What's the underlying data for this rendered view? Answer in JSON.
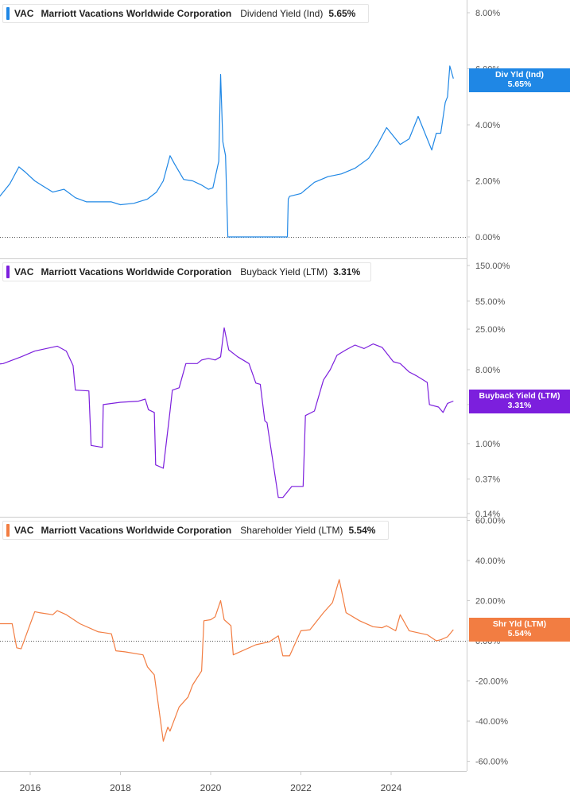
{
  "colors": {
    "dividend": "#1f87e5",
    "buyback": "#7c1fdd",
    "shareholder": "#f27d42",
    "axis": "#cccccc",
    "zero_line": "#555555"
  },
  "x_axis": {
    "ticks": [
      "2016",
      "2018",
      "2020",
      "2022",
      "2024"
    ]
  },
  "panels": [
    {
      "ticker": "VAC",
      "company": "Marriott Vacations Worldwide Corporation",
      "metric": "Dividend Yield (Ind)",
      "value": "5.65%",
      "tag_line1": "Div Yld (Ind)",
      "tag_line2": "5.65%",
      "y_ticks": [
        "8.00%",
        "6.00%",
        "4.00%",
        "2.00%",
        "0.00%"
      ]
    },
    {
      "ticker": "VAC",
      "company": "Marriott Vacations Worldwide Corporation",
      "metric": "Buyback Yield (LTM)",
      "value": "3.31%",
      "tag_line1": "Buyback Yield (LTM)",
      "tag_line2": "3.31%",
      "y_ticks": [
        "150.00%",
        "55.00%",
        "25.00%",
        "8.00%",
        "3.00%",
        "1.00%",
        "0.37%",
        "0.14%"
      ]
    },
    {
      "ticker": "VAC",
      "company": "Marriott Vacations Worldwide Corporation",
      "metric": "Shareholder Yield (LTM)",
      "value": "5.54%",
      "tag_line1": "Shr Yld (LTM)",
      "tag_line2": "5.54%",
      "y_ticks": [
        "60.00%",
        "40.00%",
        "20.00%",
        "0.00%",
        "-20.00%",
        "-40.00%",
        "-60.00%"
      ]
    }
  ],
  "chart_data": [
    {
      "type": "line",
      "series": [
        {
          "name": "Dividend Yield (Ind)",
          "x": [
            2015.0,
            2015.2,
            2015.4,
            2015.55,
            2015.75,
            2015.9,
            2016.1,
            2016.3,
            2016.5,
            2016.75,
            2017.0,
            2017.25,
            2017.5,
            2017.8,
            2018.0,
            2018.3,
            2018.6,
            2018.8,
            2018.95,
            2019.1,
            2019.2,
            2019.4,
            2019.6,
            2019.8,
            2019.95,
            2020.05,
            2020.18,
            2020.22,
            2020.27,
            2020.33,
            2020.38,
            2020.5,
            2021.0,
            2021.5,
            2021.7,
            2021.72,
            2021.75,
            2022.0,
            2022.3,
            2022.6,
            2022.9,
            2023.2,
            2023.5,
            2023.7,
            2023.9,
            2024.0,
            2024.2,
            2024.4,
            2024.6,
            2024.8,
            2024.9,
            2025.0,
            2025.1,
            2025.2,
            2025.25,
            2025.3,
            2025.38
          ],
          "values": [
            1.15,
            1.2,
            1.6,
            1.9,
            2.5,
            2.3,
            2.0,
            1.8,
            1.6,
            1.7,
            1.4,
            1.25,
            1.25,
            1.25,
            1.15,
            1.2,
            1.35,
            1.6,
            2.0,
            2.9,
            2.6,
            2.05,
            2.0,
            1.85,
            1.7,
            1.75,
            2.7,
            5.8,
            3.4,
            2.9,
            0.0,
            0.0,
            0.0,
            0.0,
            0.0,
            1.35,
            1.45,
            1.55,
            1.95,
            2.15,
            2.25,
            2.45,
            2.8,
            3.3,
            3.9,
            3.7,
            3.3,
            3.5,
            4.3,
            3.5,
            3.1,
            3.7,
            3.7,
            4.8,
            5.0,
            6.1,
            5.65
          ]
        }
      ],
      "ylim": [
        0,
        8.5
      ],
      "grid": false
    },
    {
      "type": "line",
      "y_scale": "log",
      "series": [
        {
          "name": "Buyback Yield (LTM)",
          "x": [
            2015.0,
            2015.4,
            2015.8,
            2016.1,
            2016.6,
            2016.8,
            2016.95,
            2017.0,
            2017.3,
            2017.35,
            2017.6,
            2017.62,
            2018.0,
            2018.4,
            2018.55,
            2018.62,
            2018.75,
            2018.78,
            2018.95,
            2019.1,
            2019.15,
            2019.3,
            2019.45,
            2019.7,
            2019.8,
            2019.95,
            2020.1,
            2020.22,
            2020.3,
            2020.4,
            2020.6,
            2020.85,
            2021.0,
            2021.1,
            2021.2,
            2021.25,
            2021.5,
            2021.6,
            2021.8,
            2022.05,
            2022.1,
            2022.3,
            2022.5,
            2022.65,
            2022.8,
            2023.0,
            2023.2,
            2023.4,
            2023.6,
            2023.8,
            2024.05,
            2024.2,
            2024.4,
            2024.55,
            2024.8,
            2024.85,
            2025.05,
            2025.15,
            2025.25,
            2025.38
          ],
          "values": [
            9.0,
            9.5,
            11.5,
            13.5,
            15.5,
            13.5,
            9.0,
            4.5,
            4.4,
            0.95,
            0.9,
            3.0,
            3.2,
            3.3,
            3.5,
            2.6,
            2.4,
            0.55,
            0.5,
            2.5,
            4.5,
            4.8,
            9.5,
            9.5,
            10.5,
            11.0,
            10.5,
            11.5,
            26.0,
            14.0,
            11.5,
            9.5,
            5.5,
            5.3,
            1.9,
            1.8,
            0.22,
            0.22,
            0.3,
            0.3,
            2.2,
            2.5,
            6.0,
            8.0,
            12.0,
            14.0,
            16.0,
            14.5,
            16.5,
            15.0,
            10.0,
            9.5,
            7.5,
            6.8,
            5.6,
            3.0,
            2.8,
            2.4,
            3.1,
            3.31
          ]
        }
      ],
      "ylim": [
        0.13,
        150
      ],
      "grid": false
    },
    {
      "type": "line",
      "series": [
        {
          "name": "Shareholder Yield (LTM)",
          "x": [
            2015.0,
            2015.6,
            2015.7,
            2015.8,
            2016.1,
            2016.2,
            2016.5,
            2016.6,
            2016.8,
            2017.1,
            2017.5,
            2017.8,
            2017.9,
            2018.1,
            2018.5,
            2018.6,
            2018.75,
            2018.95,
            2019.05,
            2019.1,
            2019.3,
            2019.5,
            2019.6,
            2019.8,
            2019.85,
            2020.0,
            2020.1,
            2020.22,
            2020.3,
            2020.45,
            2020.5,
            2021.0,
            2021.3,
            2021.5,
            2021.6,
            2021.75,
            2022.0,
            2022.2,
            2022.5,
            2022.7,
            2022.85,
            2023.0,
            2023.3,
            2023.6,
            2023.8,
            2023.9,
            2024.1,
            2024.2,
            2024.4,
            2024.8,
            2025.0,
            2025.1,
            2025.25,
            2025.38
          ],
          "values": [
            8.5,
            8.5,
            -3.5,
            -4.0,
            14.5,
            14.0,
            13.0,
            15.0,
            13.0,
            8.5,
            4.5,
            3.5,
            -5.0,
            -5.5,
            -7.0,
            -13.0,
            -17.0,
            -50.0,
            -43.0,
            -45.0,
            -33.0,
            -28.0,
            -22.0,
            -15.0,
            10.0,
            10.5,
            12.0,
            20.0,
            10.5,
            7.5,
            -7.0,
            -2.0,
            -0.5,
            2.5,
            -7.5,
            -7.5,
            5.0,
            5.5,
            14.0,
            19.0,
            30.5,
            14.0,
            10.0,
            7.0,
            6.5,
            7.5,
            5.0,
            13.0,
            5.0,
            3.0,
            0.0,
            0.5,
            2.0,
            5.54
          ]
        }
      ],
      "ylim": [
        -62,
        62
      ],
      "grid": false
    }
  ]
}
